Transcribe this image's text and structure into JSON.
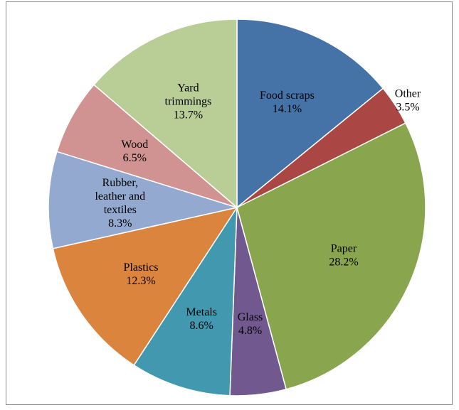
{
  "chart_data": {
    "type": "pie",
    "title": "",
    "start_angle_deg": 0,
    "direction": "clockwise",
    "slices": [
      {
        "label": "Food scraps",
        "label_lines": [
          "Food scraps"
        ],
        "value": 14.1,
        "value_text": "14.1%",
        "color": "#4572A7"
      },
      {
        "label": "Other",
        "label_lines": [
          "Other"
        ],
        "value": 3.5,
        "value_text": "3.5%",
        "color": "#AA4643",
        "label_outside": true
      },
      {
        "label": "Paper",
        "label_lines": [
          "Paper"
        ],
        "value": 28.2,
        "value_text": "28.2%",
        "color": "#89A54E"
      },
      {
        "label": "Glass",
        "label_lines": [
          "Glass"
        ],
        "value": 4.8,
        "value_text": "4.8%",
        "color": "#71588F"
      },
      {
        "label": "Metals",
        "label_lines": [
          "Metals"
        ],
        "value": 8.6,
        "value_text": "8.6%",
        "color": "#4198AF"
      },
      {
        "label": "Plastics",
        "label_lines": [
          "Plastics"
        ],
        "value": 12.3,
        "value_text": "12.3%",
        "color": "#DB843D"
      },
      {
        "label": "Rubber, leather and textiles",
        "label_lines": [
          "Rubber,",
          "leather and",
          "textiles"
        ],
        "value": 8.3,
        "value_text": "8.3%",
        "color": "#93A9CF"
      },
      {
        "label": "Wood",
        "label_lines": [
          "Wood"
        ],
        "value": 6.5,
        "value_text": "6.5%",
        "color": "#D19392"
      },
      {
        "label": "Yard trimmings",
        "label_lines": [
          "Yard",
          "trimmings"
        ],
        "value": 13.7,
        "value_text": "13.7%",
        "color": "#B9CD96"
      }
    ]
  }
}
